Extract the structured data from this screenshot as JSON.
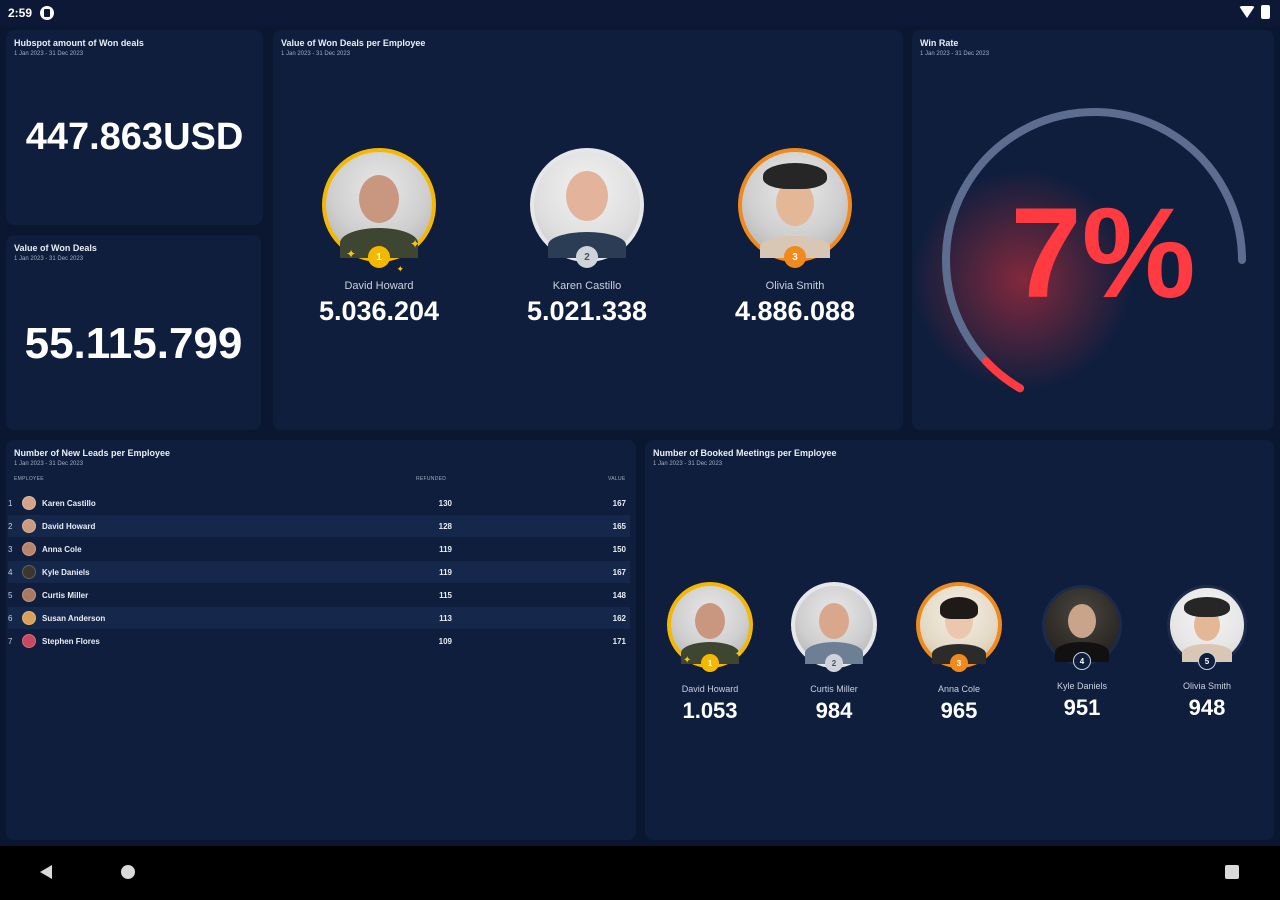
{
  "status_bar": {
    "time": "2:59"
  },
  "cards": {
    "hubspot_won": {
      "title": "Hubspot amount of Won deals",
      "subtitle": "1 Jan 2023 - 31 Dec 2023",
      "value": "447.863USD"
    },
    "value_won": {
      "title": "Value of Won Deals",
      "subtitle": "1 Jan 2023 - 31 Dec 2023",
      "value": "55.115.799"
    },
    "won_per_employee": {
      "title": "Value of Won Deals per Employee",
      "subtitle": "1 Jan 2023 - 31 Dec 2023",
      "people": [
        {
          "rank": "1",
          "name": "David Howard",
          "value": "5.036.204",
          "ring": "#f5b800"
        },
        {
          "rank": "2",
          "name": "Karen Castillo",
          "value": "5.021.338",
          "ring": "#e5e7eb"
        },
        {
          "rank": "3",
          "name": "Olivia Smith",
          "value": "4.886.088",
          "ring": "#f08a1c"
        }
      ]
    },
    "win_rate": {
      "title": "Win Rate",
      "subtitle": "1 Jan 2023 - 31 Dec 2023",
      "value": "7%",
      "fraction": 0.07,
      "value_color": "#ff3b41",
      "track_color": "#5c6d8f"
    },
    "new_leads": {
      "title": "Number of New Leads per Employee",
      "subtitle": "1 Jan 2023 - 31 Dec 2023",
      "columns": {
        "employee": "EMPLOYEE",
        "col1": "REFUNDED",
        "col2": "VALUE"
      },
      "rows": [
        {
          "rank": "1",
          "name": "Karen Castillo",
          "c1": "130",
          "c2": "167",
          "color": "#d4a48a"
        },
        {
          "rank": "2",
          "name": "David Howard",
          "c1": "128",
          "c2": "165",
          "color": "#c99b81"
        },
        {
          "rank": "3",
          "name": "Anna Cole",
          "c1": "119",
          "c2": "150",
          "color": "#b9846c"
        },
        {
          "rank": "4",
          "name": "Kyle Daniels",
          "c1": "119",
          "c2": "167",
          "color": "#3b3630"
        },
        {
          "rank": "5",
          "name": "Curtis Miller",
          "c1": "115",
          "c2": "148",
          "color": "#a87a64"
        },
        {
          "rank": "6",
          "name": "Susan Anderson",
          "c1": "113",
          "c2": "162",
          "color": "#d9a25a"
        },
        {
          "rank": "7",
          "name": "Stephen Flores",
          "c1": "109",
          "c2": "171",
          "color": "#c9475f"
        }
      ]
    },
    "booked_meetings": {
      "title": "Number of Booked Meetings per Employee",
      "subtitle": "1 Jan 2023 - 31 Dec 2023",
      "people": [
        {
          "rank": "1",
          "name": "David Howard",
          "value": "1.053",
          "ring": "#f5b800"
        },
        {
          "rank": "2",
          "name": "Curtis Miller",
          "value": "984",
          "ring": "#e5e7eb"
        },
        {
          "rank": "3",
          "name": "Anna Cole",
          "value": "965",
          "ring": "#f08a1c"
        },
        {
          "rank": "4",
          "name": "Kyle Daniels",
          "value": "951",
          "ring": "#1c2b4a"
        },
        {
          "rank": "5",
          "name": "Olivia Smith",
          "value": "948",
          "ring": "#1c2b4a"
        }
      ]
    }
  },
  "icons": {
    "back": "triangle-back-icon",
    "home": "circle-home-icon",
    "recents": "square-recents-icon"
  }
}
